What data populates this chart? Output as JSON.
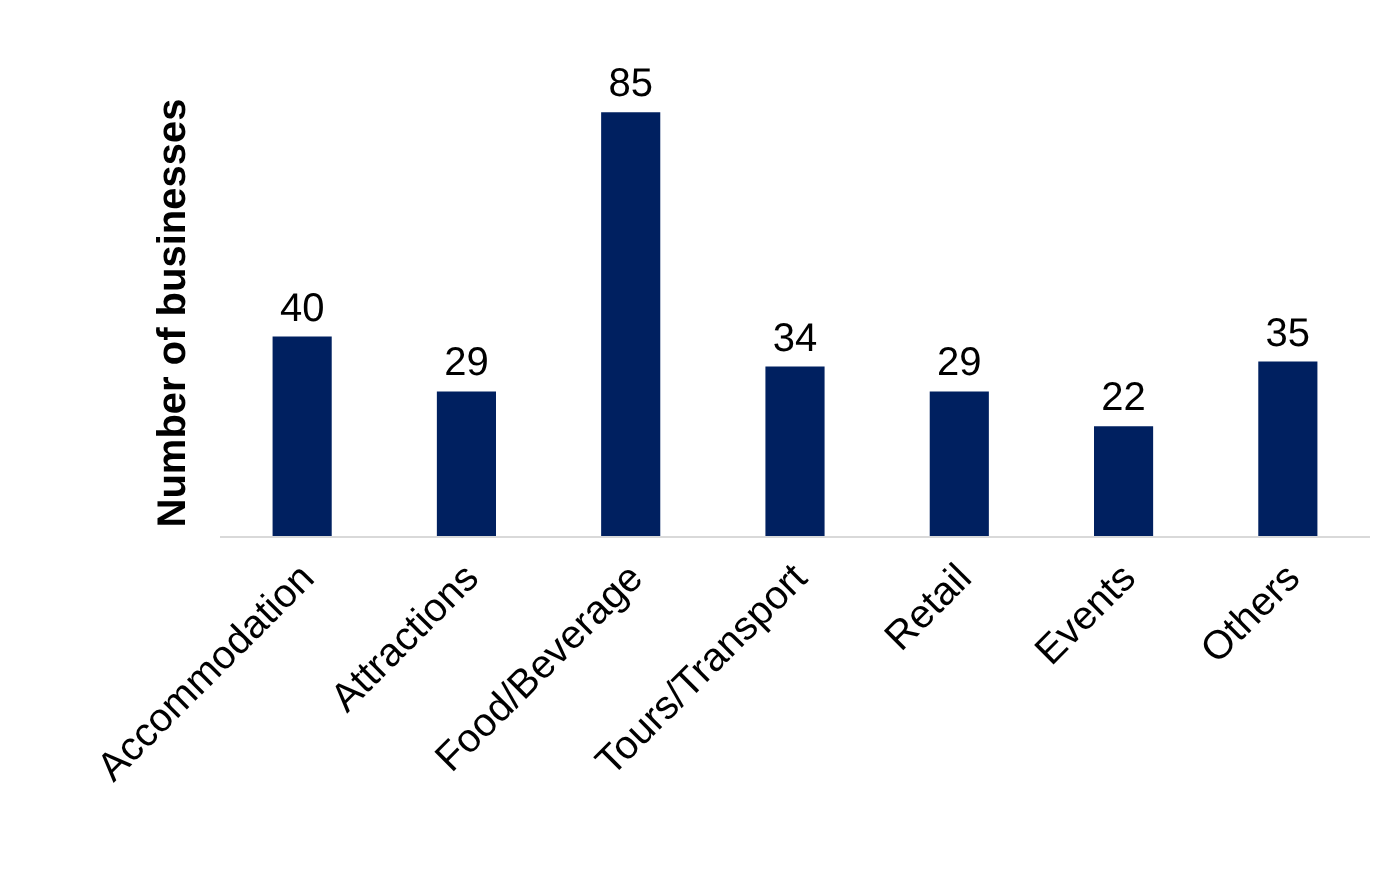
{
  "chart_data": {
    "type": "bar",
    "ylabel": "Number of businesses",
    "categories": [
      "Accommodation",
      "Attractions",
      "Food/Beverage",
      "Tours/Transport",
      "Retail",
      "Events",
      "Others"
    ],
    "values": [
      40,
      29,
      85,
      34,
      29,
      22,
      35
    ],
    "color": "#002060",
    "data_labels": true,
    "grid": false,
    "legend": false
  }
}
